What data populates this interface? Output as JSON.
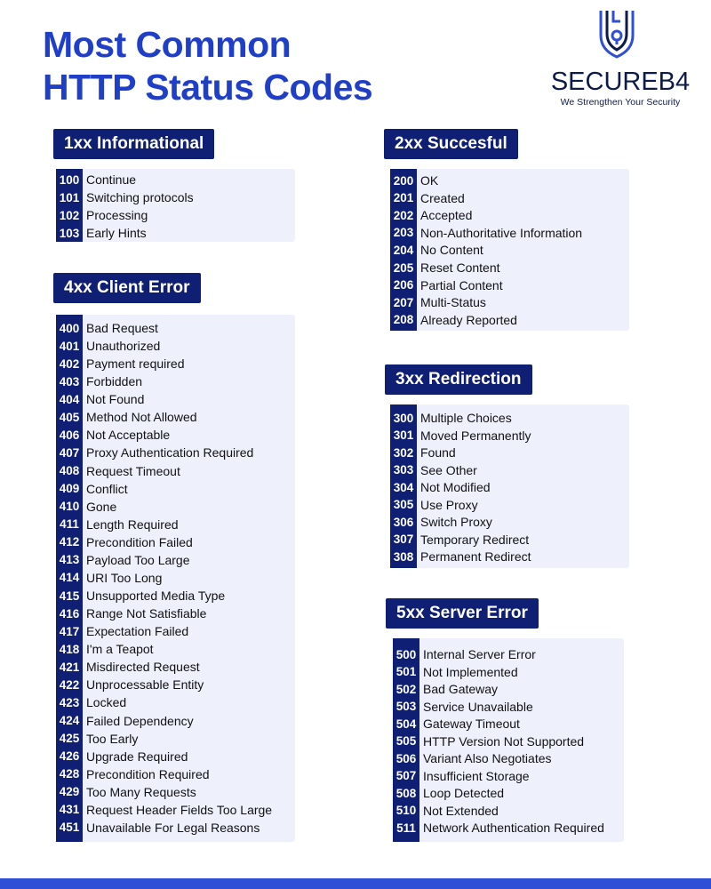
{
  "title": {
    "line1": "Most Common",
    "line2": "HTTP Status Codes"
  },
  "logo": {
    "icon": "shield-lock-icon",
    "brand": "SECUREB4",
    "tagline": "We Strengthen Your Security"
  },
  "colors": {
    "title": "#1f3fc9",
    "header_bg": "#0f1f73",
    "list_bg": "#eef1fc",
    "bottom_bar": "#2e4fd6"
  },
  "sections": [
    {
      "id": "1xx",
      "header": "1xx Informational",
      "items": [
        {
          "code": "100",
          "text": "Continue"
        },
        {
          "code": "101",
          "text": "Switching protocols"
        },
        {
          "code": "102",
          "text": "Processing"
        },
        {
          "code": "103",
          "text": "Early Hints"
        }
      ]
    },
    {
      "id": "2xx",
      "header": "2xx Succesful",
      "items": [
        {
          "code": "200",
          "text": "OK"
        },
        {
          "code": "201",
          "text": "Created"
        },
        {
          "code": "202",
          "text": "Accepted"
        },
        {
          "code": "203",
          "text": "Non-Authoritative Information"
        },
        {
          "code": "204",
          "text": "No Content"
        },
        {
          "code": "205",
          "text": "Reset Content"
        },
        {
          "code": "206",
          "text": "Partial Content"
        },
        {
          "code": "207",
          "text": "Multi-Status"
        },
        {
          "code": "208",
          "text": "Already Reported"
        }
      ]
    },
    {
      "id": "4xx",
      "header": "4xx Client Error",
      "items": [
        {
          "code": "400",
          "text": "Bad Request"
        },
        {
          "code": "401",
          "text": "Unauthorized"
        },
        {
          "code": "402",
          "text": "Payment required"
        },
        {
          "code": "403",
          "text": "Forbidden"
        },
        {
          "code": "404",
          "text": "Not Found"
        },
        {
          "code": "405",
          "text": "Method Not Allowed"
        },
        {
          "code": "406",
          "text": "Not Acceptable"
        },
        {
          "code": "407",
          "text": "Proxy Authentication Required"
        },
        {
          "code": "408",
          "text": "Request Timeout"
        },
        {
          "code": "409",
          "text": "Conflict"
        },
        {
          "code": "410",
          "text": "Gone"
        },
        {
          "code": "411",
          "text": "Length Required"
        },
        {
          "code": "412",
          "text": "Precondition Failed"
        },
        {
          "code": "413",
          "text": "Payload Too Large"
        },
        {
          "code": "414",
          "text": "URI Too Long"
        },
        {
          "code": "415",
          "text": "Unsupported Media Type"
        },
        {
          "code": "416",
          "text": "Range Not Satisfiable"
        },
        {
          "code": "417",
          "text": "Expectation Failed"
        },
        {
          "code": "418",
          "text": "I'm a Teapot"
        },
        {
          "code": "421",
          "text": "Misdirected Request"
        },
        {
          "code": "422",
          "text": "Unprocessable Entity"
        },
        {
          "code": "423",
          "text": "Locked"
        },
        {
          "code": "424",
          "text": "Failed Dependency"
        },
        {
          "code": "425",
          "text": "Too Early"
        },
        {
          "code": "426",
          "text": "Upgrade Required"
        },
        {
          "code": "428",
          "text": "Precondition Required"
        },
        {
          "code": "429",
          "text": "Too Many Requests"
        },
        {
          "code": "431",
          "text": "Request Header Fields Too Large"
        },
        {
          "code": "451",
          "text": "Unavailable For Legal Reasons"
        }
      ]
    },
    {
      "id": "3xx",
      "header": "3xx Redirection",
      "items": [
        {
          "code": "300",
          "text": "Multiple Choices"
        },
        {
          "code": "301",
          "text": "Moved Permanently"
        },
        {
          "code": "302",
          "text": "Found"
        },
        {
          "code": "303",
          "text": "See Other"
        },
        {
          "code": "304",
          "text": "Not Modified"
        },
        {
          "code": "305",
          "text": "Use Proxy"
        },
        {
          "code": "306",
          "text": "Switch Proxy"
        },
        {
          "code": "307",
          "text": "Temporary Redirect"
        },
        {
          "code": "308",
          "text": "Permanent Redirect"
        }
      ]
    },
    {
      "id": "5xx",
      "header": "5xx Server Error",
      "items": [
        {
          "code": "500",
          "text": "Internal Server Error"
        },
        {
          "code": "501",
          "text": "Not Implemented"
        },
        {
          "code": "502",
          "text": "Bad Gateway"
        },
        {
          "code": "503",
          "text": "Service Unavailable"
        },
        {
          "code": "504",
          "text": "Gateway Timeout"
        },
        {
          "code": "505",
          "text": "HTTP Version Not Supported"
        },
        {
          "code": "506",
          "text": "Variant Also Negotiates"
        },
        {
          "code": "507",
          "text": "Insufficient Storage"
        },
        {
          "code": "508",
          "text": "Loop Detected"
        },
        {
          "code": "510",
          "text": "Not Extended"
        },
        {
          "code": "511",
          "text": "Network Authentication Required"
        }
      ]
    }
  ]
}
